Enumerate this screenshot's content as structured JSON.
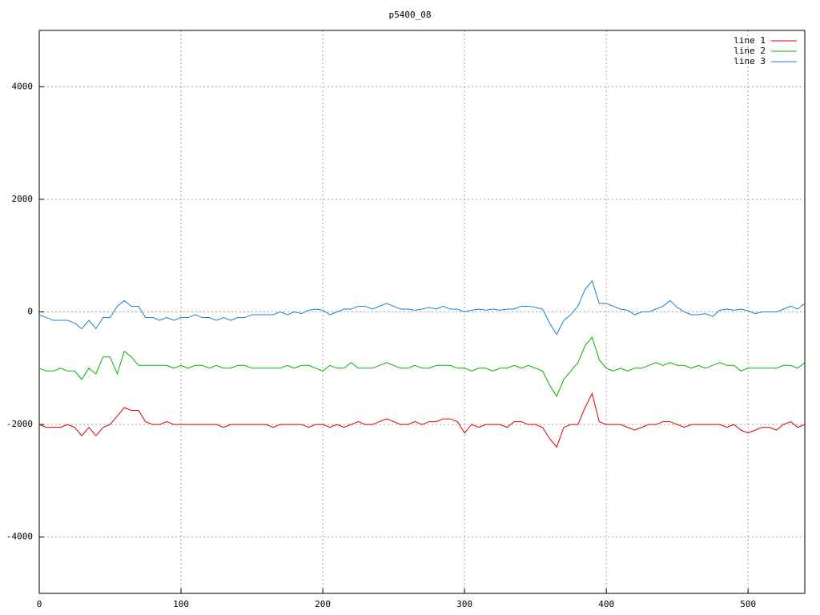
{
  "chart_data": {
    "type": "line",
    "title": "p5400_08",
    "x": [
      0,
      5,
      10,
      15,
      20,
      25,
      30,
      35,
      40,
      45,
      50,
      55,
      60,
      65,
      70,
      75,
      80,
      85,
      90,
      95,
      100,
      105,
      110,
      115,
      120,
      125,
      130,
      135,
      140,
      145,
      150,
      155,
      160,
      165,
      170,
      175,
      180,
      185,
      190,
      195,
      200,
      205,
      210,
      215,
      220,
      225,
      230,
      235,
      240,
      245,
      250,
      255,
      260,
      265,
      270,
      275,
      280,
      285,
      290,
      295,
      300,
      305,
      310,
      315,
      320,
      325,
      330,
      335,
      340,
      345,
      350,
      355,
      360,
      365,
      370,
      375,
      380,
      385,
      390,
      395,
      400,
      405,
      410,
      415,
      420,
      425,
      430,
      435,
      440,
      445,
      450,
      455,
      460,
      465,
      470,
      475,
      480,
      485,
      490,
      495,
      500,
      505,
      510,
      515,
      520,
      525,
      530,
      535,
      540
    ],
    "series": [
      {
        "name": "line 1",
        "color": "#e00000",
        "values": [
          -2000,
          -2050,
          -2050,
          -2050,
          -2000,
          -2050,
          -2200,
          -2050,
          -2200,
          -2050,
          -2000,
          -1850,
          -1700,
          -1750,
          -1750,
          -1950,
          -2000,
          -2000,
          -1950,
          -2000,
          -2000,
          -2000,
          -2000,
          -2000,
          -2000,
          -2000,
          -2050,
          -2000,
          -2000,
          -2000,
          -2000,
          -2000,
          -2000,
          -2050,
          -2000,
          -2000,
          -2000,
          -2000,
          -2050,
          -2000,
          -2000,
          -2050,
          -2000,
          -2050,
          -2000,
          -1950,
          -2000,
          -2000,
          -1950,
          -1900,
          -1950,
          -2000,
          -2000,
          -1950,
          -2000,
          -1950,
          -1950,
          -1900,
          -1900,
          -1950,
          -2150,
          -2000,
          -2050,
          -2000,
          -2000,
          -2000,
          -2050,
          -1950,
          -1950,
          -2000,
          -2000,
          -2050,
          -2250,
          -2400,
          -2050,
          -2000,
          -2000,
          -1700,
          -1450,
          -1950,
          -2000,
          -2000,
          -2000,
          -2050,
          -2100,
          -2050,
          -2000,
          -2000,
          -1950,
          -1950,
          -2000,
          -2050,
          -2000,
          -2000,
          -2000,
          -2000,
          -2000,
          -2050,
          -2000,
          -2100,
          -2150,
          -2100,
          -2050,
          -2050,
          -2100,
          -2000,
          -1950,
          -2050,
          -2000
        ]
      },
      {
        "name": "line 2",
        "color": "#00b000",
        "values": [
          -1000,
          -1050,
          -1050,
          -1000,
          -1050,
          -1050,
          -1200,
          -1000,
          -1100,
          -800,
          -800,
          -1100,
          -700,
          -800,
          -950,
          -950,
          -950,
          -950,
          -950,
          -1000,
          -950,
          -1000,
          -950,
          -950,
          -1000,
          -950,
          -1000,
          -1000,
          -950,
          -950,
          -1000,
          -1000,
          -1000,
          -1000,
          -1000,
          -950,
          -1000,
          -950,
          -950,
          -1000,
          -1050,
          -950,
          -1000,
          -1000,
          -900,
          -1000,
          -1000,
          -1000,
          -950,
          -900,
          -950,
          -1000,
          -1000,
          -950,
          -1000,
          -1000,
          -950,
          -950,
          -950,
          -1000,
          -1000,
          -1050,
          -1000,
          -1000,
          -1050,
          -1000,
          -1000,
          -950,
          -1000,
          -950,
          -1000,
          -1050,
          -1300,
          -1500,
          -1200,
          -1050,
          -900,
          -600,
          -450,
          -850,
          -1000,
          -1050,
          -1000,
          -1050,
          -1000,
          -1000,
          -950,
          -900,
          -950,
          -900,
          -950,
          -950,
          -1000,
          -950,
          -1000,
          -950,
          -900,
          -950,
          -950,
          -1050,
          -1000,
          -1000,
          -1000,
          -1000,
          -1000,
          -950,
          -950,
          -1000,
          -900
        ]
      },
      {
        "name": "line 3",
        "color": "#1a80d0",
        "values": [
          -50,
          -100,
          -150,
          -150,
          -150,
          -200,
          -300,
          -150,
          -300,
          -100,
          -100,
          100,
          200,
          100,
          100,
          -100,
          -100,
          -150,
          -100,
          -150,
          -100,
          -100,
          -50,
          -100,
          -100,
          -150,
          -100,
          -150,
          -100,
          -100,
          -50,
          -50,
          -50,
          -50,
          0,
          -50,
          0,
          -30,
          30,
          50,
          30,
          -50,
          0,
          50,
          50,
          100,
          100,
          50,
          100,
          150,
          100,
          50,
          50,
          30,
          50,
          80,
          50,
          100,
          50,
          50,
          0,
          30,
          50,
          30,
          50,
          30,
          50,
          50,
          100,
          100,
          80,
          50,
          -200,
          -400,
          -150,
          -50,
          100,
          400,
          550,
          150,
          150,
          100,
          50,
          30,
          -50,
          0,
          0,
          50,
          100,
          200,
          80,
          0,
          -50,
          -50,
          -30,
          -80,
          30,
          50,
          30,
          50,
          20,
          -30,
          0,
          0,
          0,
          50,
          100,
          50,
          150
        ]
      }
    ],
    "xlim": [
      0,
      540
    ],
    "xticks": [
      0,
      100,
      200,
      300,
      400,
      500
    ],
    "ylim": [
      -5000,
      5000
    ],
    "yticks": [
      -4000,
      -2000,
      0,
      2000,
      4000
    ],
    "grid": true,
    "legend": "top-right"
  }
}
